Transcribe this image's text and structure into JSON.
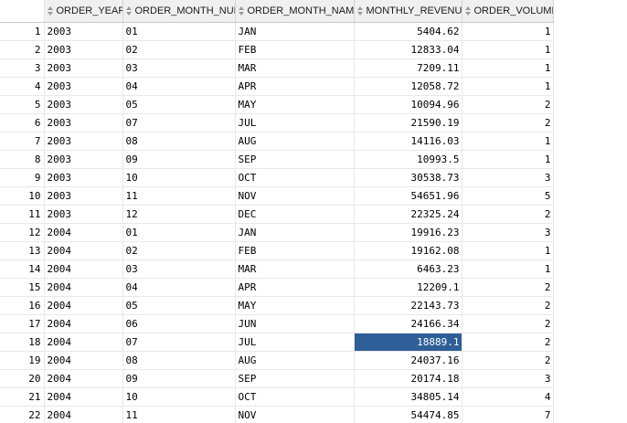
{
  "grid": {
    "columns": [
      {
        "key": "order_year",
        "label": "ORDER_YEAR",
        "align": "left"
      },
      {
        "key": "order_month_num",
        "label": "ORDER_MONTH_NUM",
        "align": "left"
      },
      {
        "key": "order_month_name",
        "label": "ORDER_MONTH_NAME",
        "align": "left"
      },
      {
        "key": "monthly_revenue",
        "label": "MONTHLY_REVENUE",
        "align": "right"
      },
      {
        "key": "order_volume",
        "label": "ORDER_VOLUME",
        "align": "right"
      }
    ],
    "selected_cell": {
      "row": 18,
      "column": "monthly_revenue"
    },
    "selection_color": "#2f5f98",
    "rows": [
      {
        "n": "1",
        "order_year": "2003",
        "order_month_num": "01",
        "order_month_name": "JAN",
        "monthly_revenue": "5404.62",
        "order_volume": "1"
      },
      {
        "n": "2",
        "order_year": "2003",
        "order_month_num": "02",
        "order_month_name": "FEB",
        "monthly_revenue": "12833.04",
        "order_volume": "1"
      },
      {
        "n": "3",
        "order_year": "2003",
        "order_month_num": "03",
        "order_month_name": "MAR",
        "monthly_revenue": "7209.11",
        "order_volume": "1"
      },
      {
        "n": "4",
        "order_year": "2003",
        "order_month_num": "04",
        "order_month_name": "APR",
        "monthly_revenue": "12058.72",
        "order_volume": "1"
      },
      {
        "n": "5",
        "order_year": "2003",
        "order_month_num": "05",
        "order_month_name": "MAY",
        "monthly_revenue": "10094.96",
        "order_volume": "2"
      },
      {
        "n": "6",
        "order_year": "2003",
        "order_month_num": "07",
        "order_month_name": "JUL",
        "monthly_revenue": "21590.19",
        "order_volume": "2"
      },
      {
        "n": "7",
        "order_year": "2003",
        "order_month_num": "08",
        "order_month_name": "AUG",
        "monthly_revenue": "14116.03",
        "order_volume": "1"
      },
      {
        "n": "8",
        "order_year": "2003",
        "order_month_num": "09",
        "order_month_name": "SEP",
        "monthly_revenue": "10993.5",
        "order_volume": "1"
      },
      {
        "n": "9",
        "order_year": "2003",
        "order_month_num": "10",
        "order_month_name": "OCT",
        "monthly_revenue": "30538.73",
        "order_volume": "3"
      },
      {
        "n": "10",
        "order_year": "2003",
        "order_month_num": "11",
        "order_month_name": "NOV",
        "monthly_revenue": "54651.96",
        "order_volume": "5"
      },
      {
        "n": "11",
        "order_year": "2003",
        "order_month_num": "12",
        "order_month_name": "DEC",
        "monthly_revenue": "22325.24",
        "order_volume": "2"
      },
      {
        "n": "12",
        "order_year": "2004",
        "order_month_num": "01",
        "order_month_name": "JAN",
        "monthly_revenue": "19916.23",
        "order_volume": "3"
      },
      {
        "n": "13",
        "order_year": "2004",
        "order_month_num": "02",
        "order_month_name": "FEB",
        "monthly_revenue": "19162.08",
        "order_volume": "1"
      },
      {
        "n": "14",
        "order_year": "2004",
        "order_month_num": "03",
        "order_month_name": "MAR",
        "monthly_revenue": "6463.23",
        "order_volume": "1"
      },
      {
        "n": "15",
        "order_year": "2004",
        "order_month_num": "04",
        "order_month_name": "APR",
        "monthly_revenue": "12209.1",
        "order_volume": "2"
      },
      {
        "n": "16",
        "order_year": "2004",
        "order_month_num": "05",
        "order_month_name": "MAY",
        "monthly_revenue": "22143.73",
        "order_volume": "2"
      },
      {
        "n": "17",
        "order_year": "2004",
        "order_month_num": "06",
        "order_month_name": "JUN",
        "monthly_revenue": "24166.34",
        "order_volume": "2"
      },
      {
        "n": "18",
        "order_year": "2004",
        "order_month_num": "07",
        "order_month_name": "JUL",
        "monthly_revenue": "18889.1",
        "order_volume": "2"
      },
      {
        "n": "19",
        "order_year": "2004",
        "order_month_num": "08",
        "order_month_name": "AUG",
        "monthly_revenue": "24037.16",
        "order_volume": "2"
      },
      {
        "n": "20",
        "order_year": "2004",
        "order_month_num": "09",
        "order_month_name": "SEP",
        "monthly_revenue": "20174.18",
        "order_volume": "3"
      },
      {
        "n": "21",
        "order_year": "2004",
        "order_month_num": "10",
        "order_month_name": "OCT",
        "monthly_revenue": "34805.14",
        "order_volume": "4"
      },
      {
        "n": "22",
        "order_year": "2004",
        "order_month_num": "11",
        "order_month_name": "NOV",
        "monthly_revenue": "54474.85",
        "order_volume": "7"
      }
    ]
  }
}
